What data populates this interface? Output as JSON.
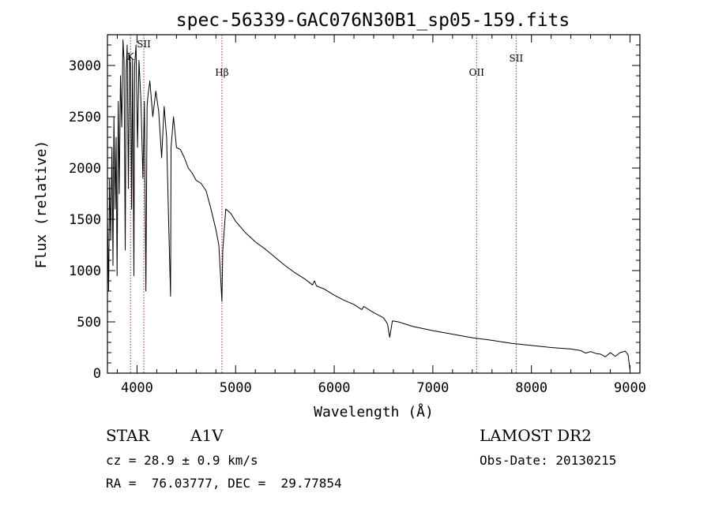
{
  "chart_data": {
    "type": "line",
    "title": "spec-56339-GAC076N30B1_sp05-159.fits",
    "xlabel": "Wavelength (Å)",
    "ylabel": "Flux (relative)",
    "xlim": [
      3700,
      9100
    ],
    "ylim": [
      0,
      3300
    ],
    "xticks": [
      4000,
      5000,
      6000,
      7000,
      8000,
      9000
    ],
    "yticks": [
      0,
      500,
      1000,
      1500,
      2000,
      2500,
      3000
    ],
    "grid": false,
    "line_color": "#000000",
    "marker_color": "#a52a2a",
    "lines": [
      {
        "label": "K",
        "x": 3934
      },
      {
        "label": "SII",
        "x": 4069
      },
      {
        "label": "Hβ",
        "x": 4861
      },
      {
        "label": "OII",
        "x": 7444
      },
      {
        "label": "SII",
        "x": 7845
      }
    ],
    "x": [
      3700,
      3712,
      3722,
      3734,
      3746,
      3756,
      3766,
      3778,
      3788,
      3798,
      3810,
      3820,
      3832,
      3845,
      3858,
      3868,
      3880,
      3890,
      3900,
      3912,
      3925,
      3934,
      3945,
      3955,
      3968,
      3976,
      3990,
      4005,
      4020,
      4040,
      4060,
      4075,
      4090,
      4102,
      4110,
      4130,
      4160,
      4190,
      4220,
      4250,
      4275,
      4300,
      4320,
      4340,
      4345,
      4370,
      4400,
      4440,
      4480,
      4520,
      4560,
      4600,
      4650,
      4700,
      4750,
      4800,
      4830,
      4850,
      4861,
      4870,
      4900,
      4950,
      5000,
      5100,
      5200,
      5300,
      5400,
      5500,
      5600,
      5700,
      5780,
      5800,
      5820,
      5900,
      6000,
      6100,
      6200,
      6280,
      6300,
      6400,
      6500,
      6540,
      6563,
      6590,
      6650,
      6800,
      7000,
      7200,
      7400,
      7600,
      7800,
      8000,
      8200,
      8400,
      8500,
      8550,
      8600,
      8660,
      8700,
      8750,
      8800,
      8850,
      8900,
      8950,
      8980,
      9000
    ],
    "y": [
      1500,
      800,
      1900,
      1300,
      2200,
      1050,
      2500,
      1600,
      2300,
      950,
      2650,
      1750,
      2900,
      2400,
      3250,
      3050,
      1200,
      2950,
      3200,
      1800,
      3100,
      3000,
      1600,
      3050,
      950,
      3000,
      3200,
      2200,
      3050,
      2650,
      1900,
      2650,
      800,
      2600,
      2700,
      2850,
      2500,
      2750,
      2550,
      2100,
      2600,
      2300,
      1500,
      750,
      2200,
      2500,
      2200,
      2180,
      2100,
      2000,
      1950,
      1880,
      1850,
      1780,
      1600,
      1400,
      1250,
      900,
      700,
      1200,
      1600,
      1560,
      1480,
      1370,
      1280,
      1210,
      1130,
      1050,
      980,
      920,
      860,
      900,
      850,
      820,
      760,
      710,
      670,
      620,
      650,
      590,
      540,
      480,
      350,
      510,
      500,
      455,
      415,
      380,
      345,
      320,
      290,
      270,
      250,
      235,
      220,
      195,
      210,
      190,
      185,
      160,
      200,
      165,
      200,
      215,
      180,
      30
    ]
  },
  "info": {
    "class_label": "STAR",
    "subclass": "A1V",
    "survey": "LAMOST DR2",
    "cz": "cz = 28.9 ± 0.9 km/s",
    "obs_date": "Obs-Date: 20130215",
    "radec": "RA =  76.03777, DEC =  29.77854"
  }
}
